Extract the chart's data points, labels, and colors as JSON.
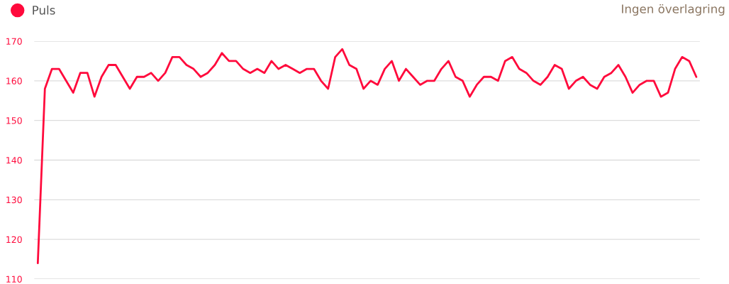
{
  "chart_data": {
    "type": "line",
    "categories": [
      null,
      null,
      null,
      null,
      null,
      null,
      null,
      null,
      null,
      null,
      null,
      null,
      null,
      null,
      null,
      null,
      null,
      null,
      null,
      null,
      null,
      null,
      null,
      null,
      null,
      null,
      null,
      null,
      null,
      null,
      null,
      null,
      null,
      null,
      null,
      null,
      null,
      null,
      null,
      null,
      null,
      null,
      null,
      null,
      null,
      null,
      null,
      null,
      null,
      null,
      null,
      null,
      null,
      null,
      null,
      null,
      null,
      null,
      null,
      null,
      null,
      null,
      null,
      null,
      null,
      null,
      null,
      null,
      null,
      null,
      null,
      null,
      null,
      null,
      null,
      null,
      null,
      null,
      null,
      null,
      null,
      null,
      null,
      null,
      null,
      null,
      null,
      null,
      null,
      null,
      null,
      null,
      null,
      null
    ],
    "series": [
      {
        "name": "Puls",
        "color": "#ff0a3c",
        "values": [
          114,
          158,
          163,
          163,
          160,
          157,
          162,
          162,
          156,
          161,
          164,
          164,
          161,
          158,
          161,
          161,
          162,
          160,
          162,
          166,
          166,
          164,
          163,
          161,
          162,
          164,
          167,
          165,
          165,
          163,
          162,
          163,
          162,
          165,
          163,
          164,
          163,
          162,
          163,
          163,
          160,
          158,
          166,
          168,
          164,
          163,
          158,
          160,
          159,
          163,
          165,
          160,
          163,
          161,
          159,
          160,
          160,
          163,
          165,
          161,
          160,
          156,
          159,
          161,
          161,
          160,
          165,
          166,
          163,
          162,
          160,
          159,
          161,
          164,
          163,
          158,
          160,
          161,
          159,
          158,
          161,
          162,
          164,
          161,
          157,
          159,
          160,
          160,
          156,
          157,
          163,
          166,
          165,
          161
        ]
      }
    ],
    "ylim": [
      110,
      170
    ],
    "yticks": [
      110,
      120,
      130,
      140,
      150,
      160,
      170
    ],
    "tick_labels": "y",
    "grid": "y",
    "legend": "top left",
    "marker": "none",
    "line_style": "solid",
    "annotations": [
      "Ingen överlagring"
    ]
  }
}
